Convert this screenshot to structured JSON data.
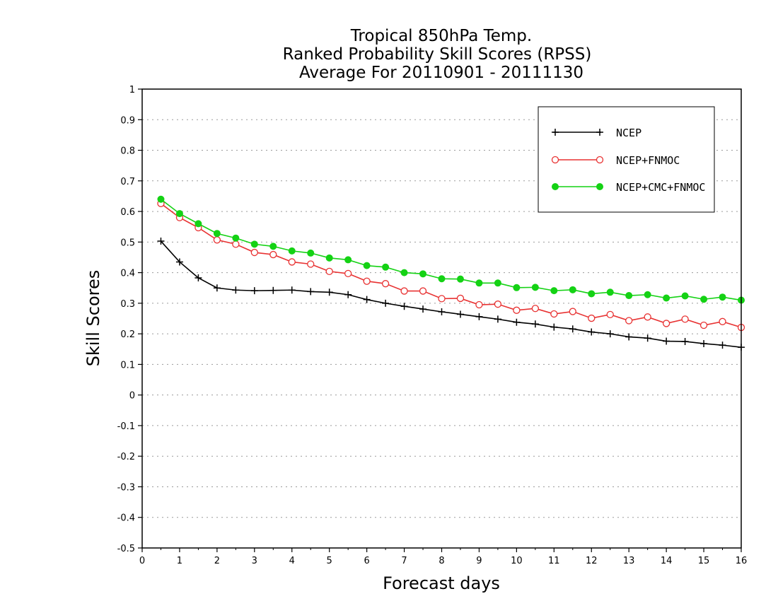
{
  "chart_data": {
    "type": "line",
    "title": [
      "Tropical 850hPa Temp.",
      "Ranked Probability Skill Scores (RPSS)",
      "Average For 20110901 - 20111130"
    ],
    "xlabel": "Forecast days",
    "ylabel": "Skill Scores",
    "xlim": [
      0,
      16
    ],
    "ylim": [
      -0.5,
      1
    ],
    "xticks": [
      "0",
      "1",
      "2",
      "3",
      "4",
      "5",
      "6",
      "7",
      "8",
      "9",
      "10",
      "11",
      "12",
      "13",
      "14",
      "15",
      "16"
    ],
    "yticks": [
      "-0.5",
      "-0.4",
      "-0.3",
      "-0.2",
      "-0.1",
      "0",
      "0.1",
      "0.2",
      "0.3",
      "0.4",
      "0.5",
      "0.6",
      "0.7",
      "0.8",
      "0.9",
      "1"
    ],
    "grid": true,
    "legend": "top-right",
    "x": [
      0.5,
      1,
      1.5,
      2,
      2.5,
      3,
      3.5,
      4,
      4.5,
      5,
      5.5,
      6,
      6.5,
      7,
      7.5,
      8,
      8.5,
      9,
      9.5,
      10,
      10.5,
      11,
      11.5,
      12,
      12.5,
      13,
      13.5,
      14,
      14.5,
      15,
      15.5,
      16
    ],
    "series": [
      {
        "name": "NCEP",
        "color": "#000000",
        "marker": "plus",
        "values": [
          0.503,
          0.435,
          0.383,
          0.35,
          0.343,
          0.341,
          0.342,
          0.343,
          0.338,
          0.336,
          0.328,
          0.312,
          0.3,
          0.29,
          0.281,
          0.272,
          0.264,
          0.256,
          0.248,
          0.238,
          0.232,
          0.222,
          0.216,
          0.206,
          0.2,
          0.19,
          0.186,
          0.176,
          0.175,
          0.168,
          0.163,
          0.156
        ]
      },
      {
        "name": "NCEP+FNMOC",
        "color": "#e83232",
        "marker": "open-circle",
        "values": [
          0.626,
          0.58,
          0.547,
          0.507,
          0.493,
          0.466,
          0.459,
          0.435,
          0.428,
          0.404,
          0.397,
          0.372,
          0.364,
          0.34,
          0.34,
          0.315,
          0.316,
          0.295,
          0.297,
          0.277,
          0.283,
          0.265,
          0.273,
          0.251,
          0.263,
          0.243,
          0.255,
          0.234,
          0.248,
          0.228,
          0.24,
          0.221
        ]
      },
      {
        "name": "NCEP+CMC+FNMOC",
        "color": "#14d214",
        "marker": "filled-circle",
        "values": [
          0.64,
          0.593,
          0.56,
          0.528,
          0.513,
          0.493,
          0.486,
          0.471,
          0.464,
          0.448,
          0.442,
          0.423,
          0.418,
          0.4,
          0.396,
          0.38,
          0.379,
          0.366,
          0.366,
          0.351,
          0.352,
          0.341,
          0.344,
          0.331,
          0.336,
          0.325,
          0.328,
          0.317,
          0.324,
          0.313,
          0.32,
          0.31
        ]
      }
    ]
  }
}
